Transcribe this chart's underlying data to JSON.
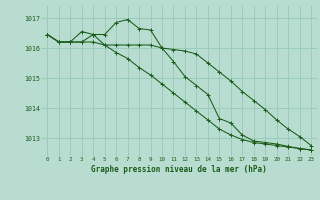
{
  "title": "Graphe pression niveau de la mer (hPa)",
  "background_color": "#b8ddd0",
  "grid_color": "#99ccbb",
  "line_color": "#1a5c1a",
  "xlim": [
    -0.5,
    23.5
  ],
  "ylim": [
    1012.4,
    1017.4
  ],
  "yticks": [
    1013,
    1014,
    1015,
    1016,
    1017
  ],
  "xticks": [
    0,
    1,
    2,
    3,
    4,
    5,
    6,
    7,
    8,
    9,
    10,
    11,
    12,
    13,
    14,
    15,
    16,
    17,
    18,
    19,
    20,
    21,
    22,
    23
  ],
  "series1": [
    1016.45,
    1016.2,
    1016.2,
    1016.55,
    1016.45,
    1016.45,
    1016.85,
    1016.95,
    1016.65,
    1016.6,
    1016.0,
    1015.55,
    1015.05,
    1014.75,
    1014.45,
    1013.65,
    1013.5,
    1013.1,
    1012.9,
    1012.85,
    1012.8,
    1012.72,
    1012.65,
    1012.6
  ],
  "series2": [
    1016.45,
    1016.2,
    1016.2,
    1016.2,
    1016.2,
    1016.1,
    1016.1,
    1016.1,
    1016.1,
    1016.1,
    1016.0,
    1015.95,
    1015.9,
    1015.8,
    1015.5,
    1015.2,
    1014.9,
    1014.55,
    1014.25,
    1013.95,
    1013.6,
    1013.3,
    1013.05,
    1012.75
  ],
  "series3": [
    1016.45,
    1016.2,
    1016.2,
    1016.2,
    1016.45,
    1016.1,
    1015.85,
    1015.65,
    1015.35,
    1015.1,
    1014.8,
    1014.5,
    1014.2,
    1013.9,
    1013.6,
    1013.3,
    1013.1,
    1012.95,
    1012.85,
    1012.8,
    1012.75,
    1012.7,
    1012.65,
    1012.6
  ]
}
